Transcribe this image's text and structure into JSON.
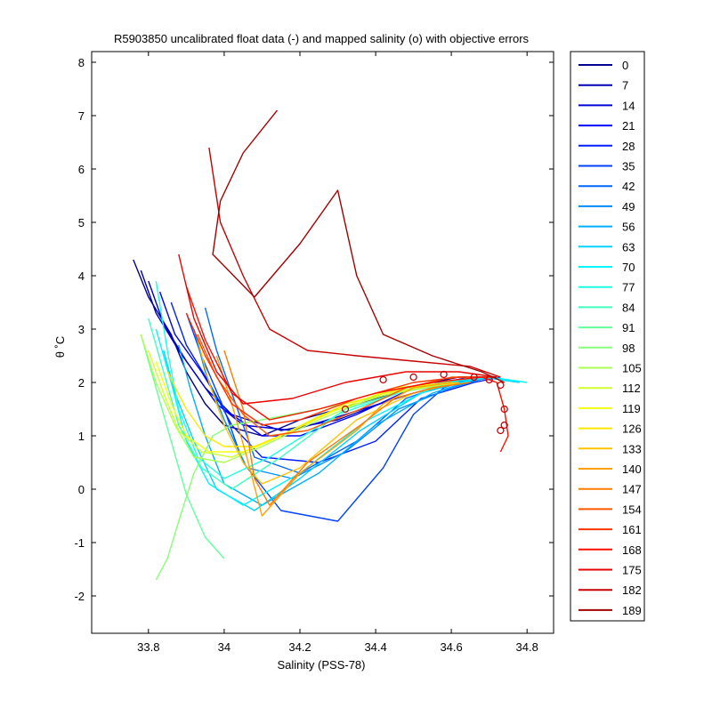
{
  "chart_data": {
    "type": "line",
    "title": "R5903850 uncalibrated float data (-) and mapped salinity (o) with objective errors",
    "xlabel": "Salinity (PSS-78)",
    "ylabel": "θ ˚C",
    "xlim": [
      33.65,
      34.87
    ],
    "ylim": [
      -2.7,
      8.2
    ],
    "xticks": [
      33.8,
      34,
      34.2,
      34.4,
      34.6,
      34.8
    ],
    "xtick_labels": [
      "33.8",
      "34",
      "34.2",
      "34.4",
      "34.6",
      "34.8"
    ],
    "yticks": [
      -2,
      -1,
      0,
      1,
      2,
      3,
      4,
      5,
      6,
      7,
      8
    ],
    "ytick_labels": [
      "-2",
      "-1",
      "0",
      "1",
      "2",
      "3",
      "4",
      "5",
      "6",
      "7",
      "8"
    ],
    "grid": false,
    "legend": {
      "placement": "outside-right",
      "entries": [
        "0",
        "7",
        "14",
        "21",
        "28",
        "35",
        "42",
        "49",
        "56",
        "63",
        "70",
        "77",
        "84",
        "91",
        "98",
        "105",
        "112",
        "119",
        "126",
        "133",
        "140",
        "147",
        "154",
        "161",
        "168",
        "175",
        "182",
        "189"
      ]
    },
    "colors": [
      "#00008f",
      "#0000b3",
      "#0000d7",
      "#0000fb",
      "#001fff",
      "#0043ff",
      "#0067ff",
      "#008bff",
      "#00afff",
      "#00d3ff",
      "#00f7ff",
      "#1bffe3",
      "#3fffbf",
      "#63ff9b",
      "#87ff77",
      "#abff53",
      "#cfff2f",
      "#f3ff0b",
      "#ffe700",
      "#ffc300",
      "#ff9f00",
      "#ff7b00",
      "#ff5700",
      "#ff3300",
      "#ff0f00",
      "#eb0000",
      "#c70000",
      "#a30000"
    ],
    "series": [
      {
        "name": "0",
        "x": [
          33.76,
          33.8,
          33.86,
          33.9,
          33.95,
          34.0,
          34.1,
          34.2,
          34.4,
          34.55,
          34.62,
          34.7
        ],
        "y": [
          4.3,
          3.6,
          2.9,
          2.2,
          1.6,
          1.2,
          1.0,
          1.3,
          1.7,
          2.0,
          2.1,
          2.1
        ]
      },
      {
        "name": "7",
        "x": [
          33.78,
          33.82,
          33.88,
          33.95,
          34.02,
          34.15,
          34.3,
          34.45,
          34.6,
          34.7
        ],
        "y": [
          4.1,
          3.3,
          2.6,
          1.9,
          1.4,
          1.1,
          1.3,
          1.7,
          2.0,
          2.1
        ]
      },
      {
        "name": "14",
        "x": [
          33.8,
          33.84,
          33.9,
          33.98,
          34.05,
          34.18,
          34.32,
          34.5,
          34.63,
          34.71
        ],
        "y": [
          3.9,
          3.1,
          2.4,
          1.6,
          1.2,
          1.1,
          1.4,
          1.8,
          2.0,
          2.1
        ]
      },
      {
        "name": "21",
        "x": [
          33.83,
          33.87,
          33.94,
          34.0,
          34.1,
          34.2,
          34.35,
          34.5,
          34.65,
          34.72
        ],
        "y": [
          3.7,
          2.9,
          2.2,
          1.5,
          1.0,
          1.0,
          1.4,
          1.9,
          2.1,
          2.1
        ]
      },
      {
        "name": "28",
        "x": [
          33.86,
          33.9,
          33.96,
          34.02,
          34.1,
          34.25,
          34.4,
          34.52,
          34.66,
          34.73
        ],
        "y": [
          3.5,
          2.7,
          2.0,
          1.2,
          0.6,
          0.5,
          0.9,
          1.7,
          2.0,
          2.1
        ]
      },
      {
        "name": "35",
        "x": [
          33.9,
          33.94,
          34.0,
          34.05,
          34.15,
          34.3,
          34.42,
          34.5,
          34.58,
          34.66,
          34.72
        ],
        "y": [
          3.3,
          2.5,
          1.5,
          0.5,
          -0.4,
          -0.6,
          0.4,
          1.4,
          1.9,
          2.1,
          2.1
        ]
      },
      {
        "name": "42",
        "x": [
          33.95,
          33.98,
          34.03,
          34.08,
          34.2,
          34.35,
          34.48,
          34.6,
          34.7
        ],
        "y": [
          3.4,
          2.6,
          1.6,
          0.6,
          0.3,
          0.9,
          1.7,
          2.0,
          2.1
        ]
      },
      {
        "name": "49",
        "x": [
          33.92,
          33.95,
          34.0,
          34.06,
          34.18,
          34.32,
          34.46,
          34.6,
          34.7
        ],
        "y": [
          3.0,
          2.2,
          1.3,
          0.4,
          0.2,
          0.7,
          1.5,
          1.9,
          2.1
        ]
      },
      {
        "name": "56",
        "x": [
          33.88,
          33.91,
          33.95,
          34.0,
          34.1,
          34.25,
          34.4,
          34.55,
          34.68
        ],
        "y": [
          2.7,
          1.9,
          1.0,
          0.1,
          -0.3,
          0.3,
          1.2,
          1.8,
          2.1
        ]
      },
      {
        "name": "63",
        "x": [
          33.84,
          33.87,
          33.92,
          33.98,
          34.08,
          34.2,
          34.36,
          34.52,
          34.68,
          34.78
        ],
        "y": [
          2.6,
          1.8,
          0.9,
          0.0,
          -0.4,
          0.2,
          1.1,
          1.8,
          2.1,
          2.0
        ]
      },
      {
        "name": "70",
        "x": [
          33.82,
          33.86,
          33.9,
          33.96,
          34.05,
          34.2,
          34.38,
          34.55,
          34.7,
          34.8
        ],
        "y": [
          3.0,
          2.0,
          0.9,
          0.1,
          -0.3,
          0.3,
          1.3,
          1.9,
          2.1,
          2.0
        ]
      },
      {
        "name": "77",
        "x": [
          33.82,
          33.85,
          33.88,
          33.93,
          34.0,
          34.12,
          34.3,
          34.5,
          34.68
        ],
        "y": [
          3.9,
          2.6,
          1.5,
          0.6,
          0.2,
          0.6,
          1.4,
          1.9,
          2.1
        ]
      },
      {
        "name": "84",
        "x": [
          33.8,
          33.84,
          33.88,
          33.94,
          34.02,
          34.15,
          34.32,
          34.5,
          34.66
        ],
        "y": [
          3.2,
          2.2,
          1.2,
          0.4,
          0.0,
          0.6,
          1.5,
          1.9,
          2.1
        ]
      },
      {
        "name": "91",
        "x": [
          33.78,
          33.82,
          33.86,
          33.9,
          33.95,
          34.0
        ],
        "y": [
          2.9,
          1.9,
          0.9,
          -0.1,
          -0.9,
          -1.3
        ]
      },
      {
        "name": "98",
        "x": [
          33.82,
          33.85,
          33.88,
          33.92,
          33.97,
          34.02,
          34.1,
          34.25,
          34.45,
          34.62
        ],
        "y": [
          -1.7,
          -1.3,
          -0.6,
          0.3,
          1.0,
          1.2,
          1.3,
          1.5,
          1.8,
          2.0
        ]
      },
      {
        "name": "105",
        "x": [
          33.78,
          33.82,
          33.87,
          33.92,
          34.0,
          34.1,
          34.25,
          34.42,
          34.6
        ],
        "y": [
          2.9,
          2.0,
          1.2,
          0.6,
          0.5,
          0.8,
          1.3,
          1.8,
          2.0
        ]
      },
      {
        "name": "112",
        "x": [
          33.8,
          33.84,
          33.88,
          33.94,
          34.02,
          34.12,
          34.26,
          34.44,
          34.6
        ],
        "y": [
          2.6,
          1.8,
          1.1,
          0.7,
          0.6,
          0.9,
          1.4,
          1.8,
          2.0
        ]
      },
      {
        "name": "119",
        "x": [
          33.82,
          33.86,
          33.9,
          33.96,
          34.05,
          34.15,
          34.3,
          34.45,
          34.6
        ],
        "y": [
          2.4,
          1.6,
          1.0,
          0.7,
          0.7,
          1.0,
          1.5,
          1.9,
          2.0
        ]
      },
      {
        "name": "126",
        "x": [
          33.85,
          33.9,
          33.95,
          34.0,
          34.08,
          34.18,
          34.32,
          34.48,
          34.62
        ],
        "y": [
          2.2,
          1.5,
          1.0,
          0.8,
          0.8,
          1.1,
          1.6,
          1.9,
          2.0
        ]
      },
      {
        "name": "133",
        "x": [
          33.93,
          33.96,
          34.0,
          34.05,
          34.1,
          34.2,
          34.35,
          34.5,
          34.62
        ],
        "y": [
          2.8,
          2.0,
          1.2,
          0.5,
          0.1,
          0.4,
          1.3,
          1.8,
          2.0
        ]
      },
      {
        "name": "140",
        "x": [
          33.98,
          34.02,
          34.06,
          34.1,
          34.2,
          34.35,
          34.42,
          34.5,
          34.6
        ],
        "y": [
          2.5,
          1.6,
          0.6,
          -0.5,
          0.3,
          1.1,
          1.6,
          1.9,
          2.0
        ]
      },
      {
        "name": "147",
        "x": [
          34.0,
          34.05,
          34.08,
          34.12,
          34.22,
          34.36,
          34.45,
          34.55,
          34.65
        ],
        "y": [
          2.6,
          1.5,
          0.2,
          -0.3,
          0.5,
          1.2,
          1.7,
          1.9,
          2.0
        ]
      },
      {
        "name": "154",
        "x": [
          33.93,
          33.98,
          34.05,
          34.12,
          34.22,
          34.36,
          34.48,
          34.6,
          34.7
        ],
        "y": [
          2.9,
          2.1,
          1.4,
          1.0,
          1.1,
          1.5,
          1.9,
          2.1,
          2.1
        ]
      },
      {
        "name": "161",
        "x": [
          33.9,
          33.95,
          34.02,
          34.1,
          34.2,
          34.35,
          34.5,
          34.62,
          34.72
        ],
        "y": [
          3.3,
          2.5,
          1.6,
          1.2,
          1.3,
          1.7,
          2.0,
          2.1,
          2.1
        ]
      },
      {
        "name": "168",
        "x": [
          33.9,
          33.95,
          34.02,
          34.12,
          34.25,
          34.4,
          34.55,
          34.68,
          34.72,
          34.74,
          34.75,
          34.73
        ],
        "y": [
          3.8,
          2.8,
          1.8,
          1.3,
          1.5,
          1.8,
          2.0,
          2.1,
          2.0,
          1.5,
          1.0,
          0.7
        ]
      },
      {
        "name": "175",
        "x": [
          33.88,
          33.92,
          33.98,
          34.05,
          34.18,
          34.32,
          34.48,
          34.62,
          34.72
        ],
        "y": [
          4.4,
          3.2,
          2.2,
          1.6,
          1.7,
          2.0,
          2.2,
          2.2,
          2.1
        ]
      },
      {
        "name": "182",
        "x": [
          33.96,
          33.99,
          34.05,
          34.12,
          34.22,
          34.35,
          34.5,
          34.65,
          34.73
        ],
        "y": [
          6.4,
          5.0,
          4.0,
          3.0,
          2.6,
          2.5,
          2.4,
          2.3,
          2.1
        ]
      },
      {
        "name": "189",
        "x": [
          34.14,
          34.05,
          33.99,
          33.97,
          34.08,
          34.2,
          34.3,
          34.35,
          34.42,
          34.55,
          34.68,
          34.74
        ],
        "y": [
          7.1,
          6.3,
          5.4,
          4.4,
          3.6,
          4.6,
          5.6,
          4.0,
          2.9,
          2.5,
          2.2,
          2.0
        ]
      }
    ],
    "mapped_points": {
      "x": [
        34.32,
        34.42,
        34.5,
        34.58,
        34.66,
        34.7,
        34.73,
        34.74,
        34.74,
        34.73
      ],
      "y": [
        1.5,
        2.05,
        2.1,
        2.15,
        2.1,
        2.05,
        1.95,
        1.5,
        1.2,
        1.1
      ]
    }
  }
}
